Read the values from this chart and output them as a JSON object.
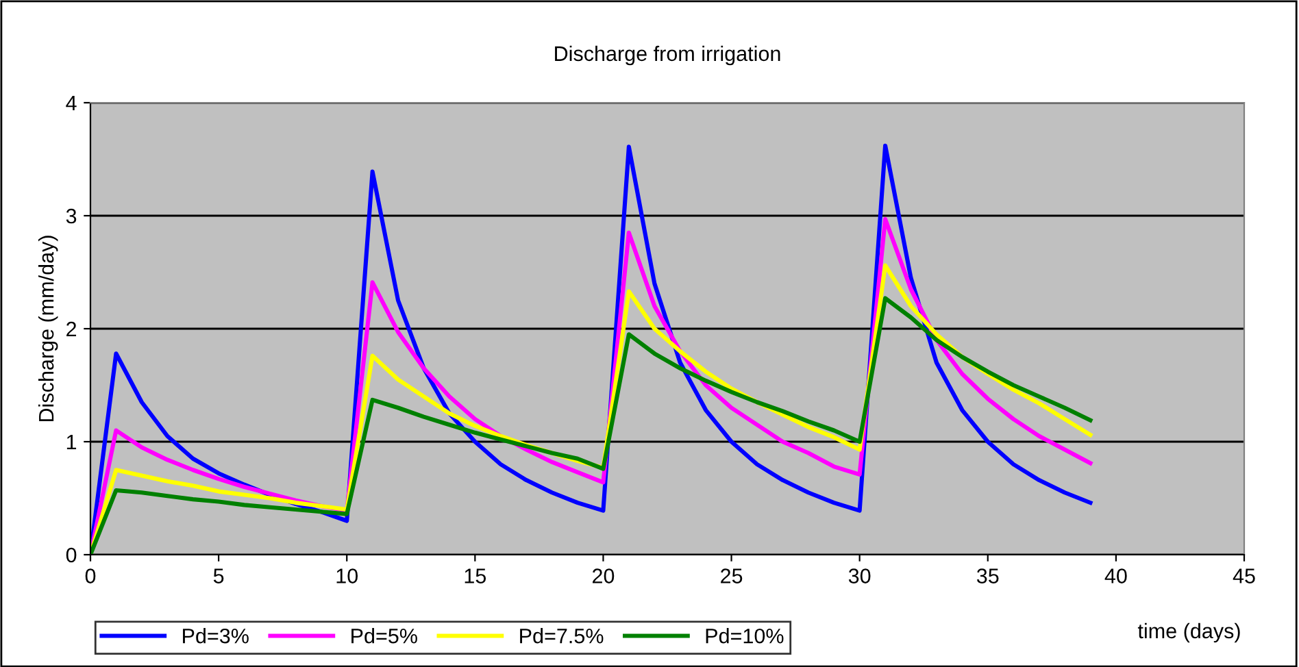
{
  "chart_data": {
    "type": "line",
    "title": "Discharge from irrigation",
    "xlabel": "time (days)",
    "ylabel": "Discharge (mm/day)",
    "x": [
      0,
      1,
      2,
      3,
      4,
      5,
      6,
      7,
      8,
      9,
      10,
      11,
      12,
      13,
      14,
      15,
      16,
      17,
      18,
      19,
      20,
      21,
      22,
      23,
      24,
      25,
      26,
      27,
      28,
      29,
      30,
      31,
      32,
      33,
      34,
      35,
      36,
      37,
      38,
      39
    ],
    "series": [
      {
        "name": "Pd=3%",
        "color": "#0000ff",
        "values": [
          0,
          1.78,
          1.35,
          1.05,
          0.85,
          0.72,
          0.62,
          0.53,
          0.45,
          0.38,
          0.3,
          3.39,
          2.25,
          1.65,
          1.25,
          1.0,
          0.8,
          0.66,
          0.55,
          0.46,
          0.39,
          3.61,
          2.4,
          1.7,
          1.28,
          1.0,
          0.8,
          0.66,
          0.55,
          0.46,
          0.39,
          3.62,
          2.45,
          1.7,
          1.28,
          1.0,
          0.8,
          0.66,
          0.55,
          0.46
        ]
      },
      {
        "name": "Pd=5%",
        "color": "#ff00ff",
        "values": [
          0,
          1.1,
          0.95,
          0.84,
          0.75,
          0.67,
          0.6,
          0.54,
          0.48,
          0.43,
          0.39,
          2.41,
          1.97,
          1.65,
          1.4,
          1.2,
          1.05,
          0.93,
          0.82,
          0.73,
          0.64,
          2.85,
          2.2,
          1.8,
          1.5,
          1.3,
          1.15,
          1.0,
          0.9,
          0.78,
          0.71,
          2.97,
          2.35,
          1.9,
          1.6,
          1.38,
          1.2,
          1.05,
          0.93,
          0.81
        ]
      },
      {
        "name": "Pd=7.5%",
        "color": "#ffff00",
        "values": [
          0,
          0.75,
          0.7,
          0.65,
          0.61,
          0.56,
          0.53,
          0.5,
          0.46,
          0.43,
          0.4,
          1.76,
          1.55,
          1.4,
          1.25,
          1.14,
          1.05,
          0.97,
          0.9,
          0.83,
          0.77,
          2.33,
          2.0,
          1.8,
          1.62,
          1.47,
          1.35,
          1.24,
          1.13,
          1.04,
          0.93,
          2.56,
          2.2,
          1.95,
          1.75,
          1.6,
          1.46,
          1.34,
          1.2,
          1.06
        ]
      },
      {
        "name": "Pd=10%",
        "color": "#008000",
        "values": [
          0,
          0.57,
          0.55,
          0.52,
          0.49,
          0.47,
          0.44,
          0.42,
          0.4,
          0.38,
          0.36,
          1.37,
          1.3,
          1.22,
          1.15,
          1.08,
          1.02,
          0.96,
          0.9,
          0.85,
          0.76,
          1.95,
          1.78,
          1.65,
          1.54,
          1.44,
          1.35,
          1.27,
          1.18,
          1.1,
          1.0,
          2.27,
          2.1,
          1.9,
          1.75,
          1.62,
          1.5,
          1.4,
          1.3,
          1.19
        ]
      }
    ],
    "xlim": [
      0,
      45
    ],
    "xticks": [
      0,
      5,
      10,
      15,
      20,
      25,
      30,
      35,
      40,
      45
    ],
    "ylim": [
      0,
      4
    ],
    "yticks": [
      0,
      1,
      2,
      3,
      4
    ],
    "grid": "y",
    "legend": "bottom",
    "marker": "none",
    "line_style": "solid"
  }
}
